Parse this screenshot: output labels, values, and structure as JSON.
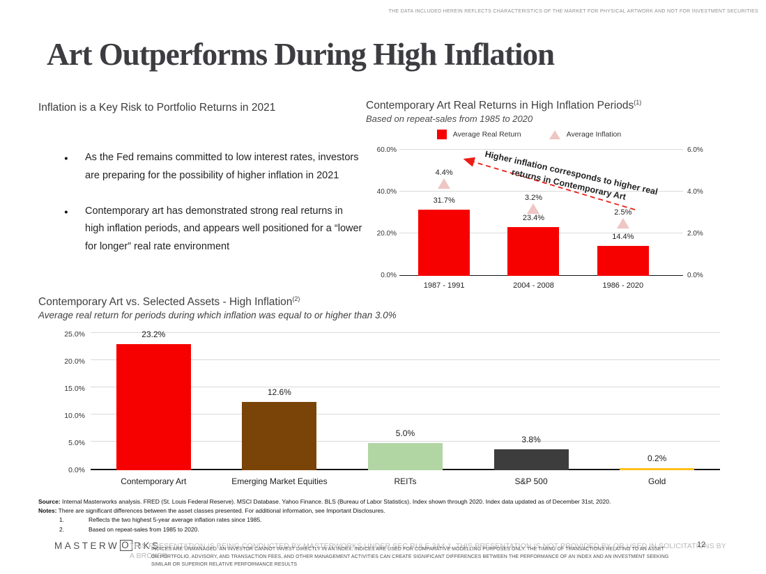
{
  "top_disclaimer": "THE DATA INCLUDED HEREIN REFLECTS CHARACTERISTICS OF THE MARKET FOR PHYSICAL ARTWORK AND NOT FOR INVESTMENT SECURITIES",
  "title": "Art Outperforms During High Inflation",
  "left_section": {
    "heading": "Inflation is a Key Risk to Portfolio Returns in 2021",
    "bullets": [
      "As the Fed remains committed to low interest rates, investors are preparing for the possibility of higher inflation in 2021",
      "Contemporary art has demonstrated strong real returns in high inflation periods, and appears well positioned for a “lower for longer” real rate environment"
    ]
  },
  "chart_data": [
    {
      "type": "bar",
      "title": "Contemporary Art Real Returns in High Inflation Periods",
      "footnote_ref": "(1)",
      "subtitle": "Based on repeat-sales from 1985 to 2020",
      "categories": [
        "1987 - 1991",
        "2004 - 2008",
        "1986 - 2020"
      ],
      "series": [
        {
          "name": "Average Real Return",
          "marker": "bar",
          "axis": "left",
          "values": [
            31.7,
            23.4,
            14.4
          ],
          "labels": [
            "31.7%",
            "23.4%",
            "14.4%"
          ],
          "color": "#f70000"
        },
        {
          "name": "Average Inflation",
          "marker": "triangle",
          "axis": "right",
          "values": [
            4.4,
            3.2,
            2.5
          ],
          "labels": [
            "4.4%",
            "3.2%",
            "2.5%"
          ],
          "color": "#eec6c4"
        }
      ],
      "left_axis": {
        "max": 60,
        "ticks": [
          "60.0%",
          "40.0%",
          "20.0%",
          "0.0%"
        ]
      },
      "right_axis": {
        "max": 6,
        "ticks": [
          "6.0%",
          "4.0%",
          "2.0%",
          "0.0%"
        ]
      },
      "annotation": "Higher inflation corresponds to higher real returns in Contemporary Art",
      "arrow_color": "#ec1c14",
      "grid": true,
      "legend_position": "top"
    },
    {
      "type": "bar",
      "title": "Contemporary Art vs. Selected Assets - High Inflation",
      "footnote_ref": "(2)",
      "subtitle": "Average real return for periods during which inflation was equal to or higher than 3.0%",
      "categories": [
        "Contemporary Art",
        "Emerging Market Equities",
        "REITs",
        "S&P 500",
        "Gold"
      ],
      "values": [
        23.2,
        12.6,
        5.0,
        3.8,
        0.2
      ],
      "labels": [
        "23.2%",
        "12.6%",
        "5.0%",
        "3.8%",
        "0.2%"
      ],
      "colors": [
        "#f70000",
        "#7a4408",
        "#b2d5a4",
        "#3d3d3d",
        "#fdc01d"
      ],
      "y_axis": {
        "max": 25,
        "ticks": [
          "25.0%",
          "20.0%",
          "15.0%",
          "10.0%",
          "5.0%",
          "0.0%"
        ]
      },
      "grid": true
    }
  ],
  "source_notes": {
    "source_label": "Source:",
    "source_text": " Internal Masterworks analysis. FRED (St. Louis Federal Reserve). MSCI Database. Yahoo Finance. BLS (Bureau of Labor Statistics). Index shown through 2020. Index data updated as of December 31st, 2020.",
    "notes_label": "Notes:",
    "notes_text": " There are significant differences between the asset classes presented. For additional information, see Important Disclosures.",
    "footnotes": [
      {
        "num": "1.",
        "text": "Reflects the two highest 5-year average inflation rates since 1985."
      },
      {
        "num": "2.",
        "text": "Based on repeat-sales from 1985 to 2020."
      }
    ]
  },
  "footer": {
    "logo_prefix": "MASTERW",
    "logo_boxed_letter": "O",
    "logo_suffix": "RKS",
    "disclaimer_large": "THIS PRESENTATION  IS BEING CONDUCTED BY MASTERWORKS UNDER SEC RULE 3A4-1. THIS PRESENTATION  IS NOT PROVIDED BY OR USED IN SOLICITATIONS BY A BROKER",
    "disclaimer_small": "INDICES ARE UNMANAGED. AN INVESTOR CANNOT INVEST DIRECTLY IN AN INDEX. INDICES ARE USED FOR COMPARATIVE MODELLING PURPOSES ONLY. THE TIMING OF TRANSACTIONS RELATING TO AN ASSET OR PORTFOLIO, ADVISORY, AND TRANSACTION FEES, AND OTHER MANAGEMENT ACTIVITIES CAN CREATE SIGNIFICANT DIFFERENCES BETWEEN THE PERFORMANCE OF AN INDEX AND AN INVESTMENT SEEKING SIMILAR OR SUPERIOR RELATIVE PERFORMANCE RESULTS",
    "page_number": "12"
  }
}
